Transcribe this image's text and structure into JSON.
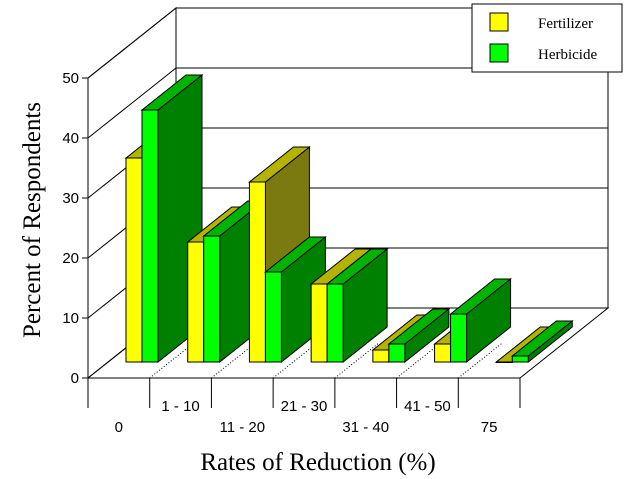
{
  "chart_data": {
    "type": "bar",
    "subtype": "3d-grouped",
    "title": "",
    "xlabel": "Rates of Reduction (%)",
    "ylabel": "Percent of Respondents",
    "ylim": [
      0,
      50
    ],
    "yticks": [
      "0",
      "10",
      "20",
      "30",
      "40",
      "50"
    ],
    "categories": [
      "0",
      "1 - 10",
      "11 - 20",
      "21 - 30",
      "31 - 40",
      "41 - 50",
      "75"
    ],
    "series": [
      {
        "name": "Fertilizer",
        "values": [
          34,
          20,
          30,
          13,
          2,
          3,
          0
        ],
        "color": "#ffff00",
        "side_color": "#7a7a10"
      },
      {
        "name": "Herbicide",
        "values": [
          42,
          21,
          15,
          13,
          3,
          8,
          1
        ],
        "color": "#00ff00",
        "side_color": "#008000"
      }
    ],
    "legend_position": "top-right",
    "grid": true
  }
}
